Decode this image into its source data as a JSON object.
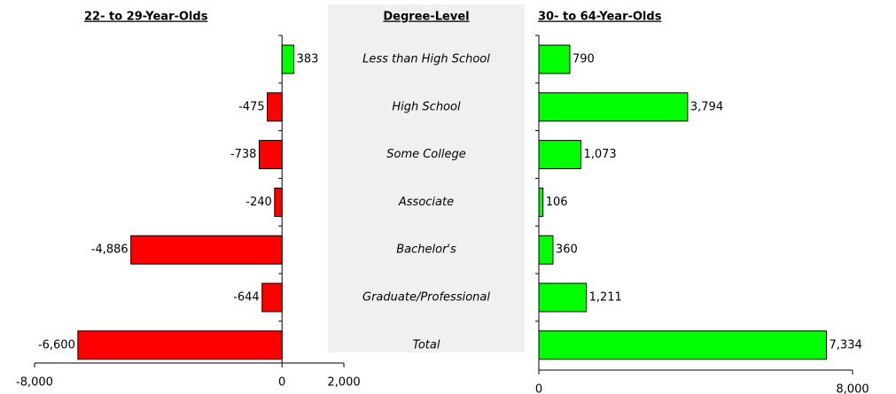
{
  "category_panel": {
    "title": "Degree-Level",
    "categories": [
      "Less than High School",
      "High School",
      "Some College",
      "Associate",
      "Bachelor's",
      "Graduate/Professional",
      "Total"
    ]
  },
  "chart_data": [
    {
      "type": "bar",
      "orientation": "horizontal",
      "title": "22- to 29-Year-Olds",
      "values": [
        383,
        -475,
        -738,
        -240,
        -4886,
        -644,
        -6600
      ],
      "value_labels": [
        "383",
        "-475",
        "-738",
        "-240",
        "-4,886",
        "-644",
        "-6,600"
      ],
      "positive_color": "#00ff00",
      "negative_color": "#ff0000",
      "xlim": [
        -8000,
        2000
      ],
      "xticks": [
        {
          "value": -8000,
          "label": "-8,000"
        },
        0,
        {
          "value": 2000,
          "label": "2,000"
        }
      ]
    },
    {
      "type": "bar",
      "orientation": "horizontal",
      "title": "30- to 64-Year-Olds",
      "values": [
        790,
        3794,
        1073,
        106,
        360,
        1211,
        7334
      ],
      "value_labels": [
        "790",
        "3,794",
        "1,073",
        "106",
        "360",
        "1,211",
        "7,334"
      ],
      "positive_color": "#00ff00",
      "negative_color": "#ff0000",
      "xlim": [
        0,
        8000
      ],
      "xticks": [
        0,
        {
          "value": 8000,
          "label": "8,000"
        }
      ]
    }
  ]
}
